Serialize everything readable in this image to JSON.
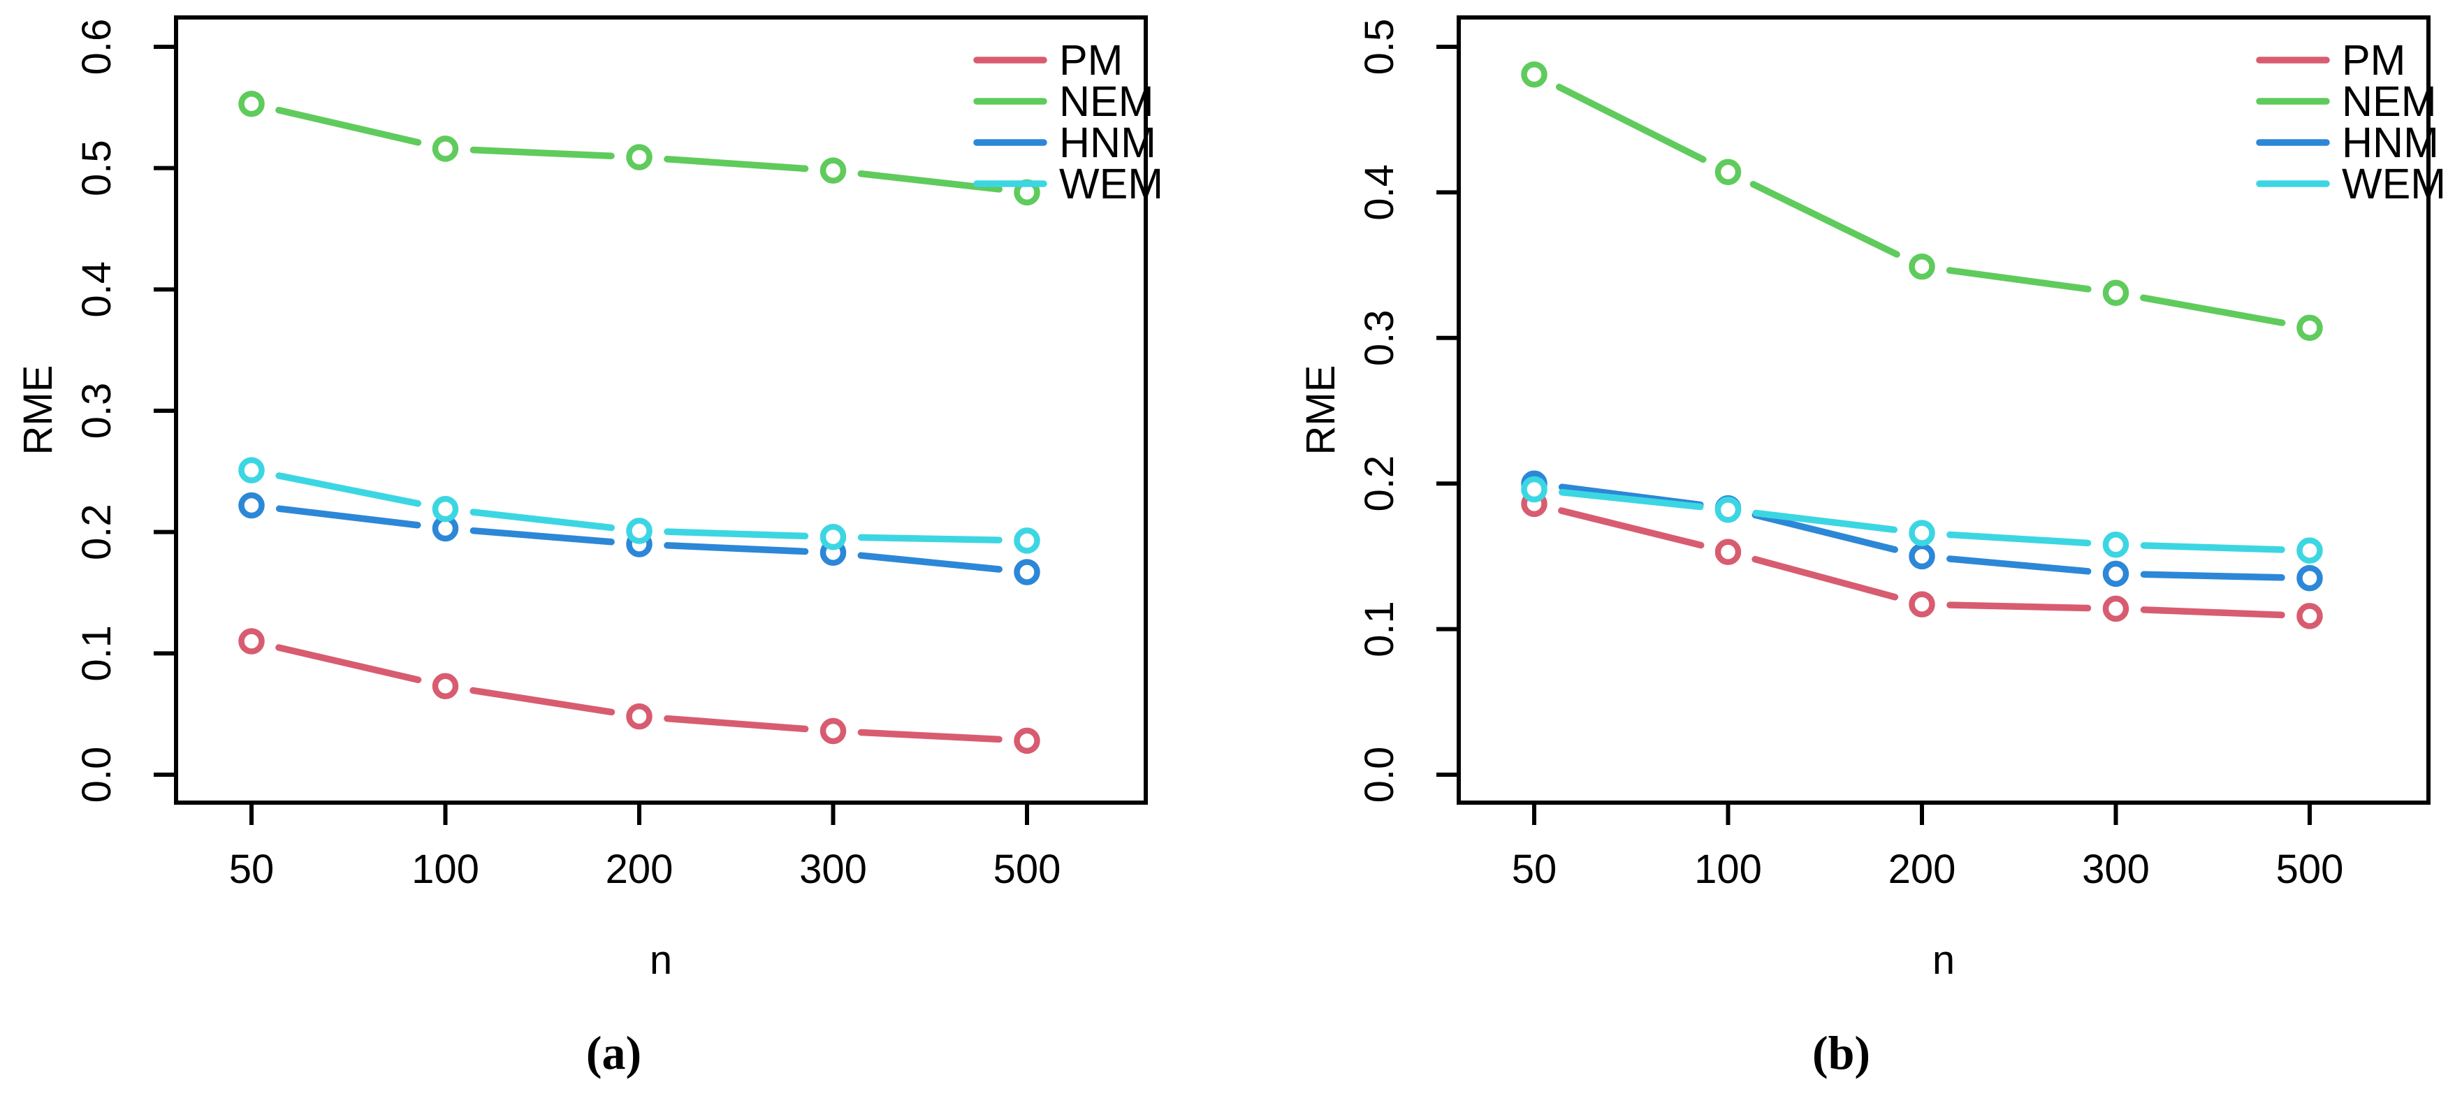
{
  "figure": {
    "background": "#ffffff",
    "caption_a": "(a)",
    "caption_b": "(b)"
  },
  "chart_data": [
    {
      "type": "line",
      "panel": "a",
      "caption": "(a)",
      "xlabel": "n",
      "ylabel": "RME",
      "x_tick_labels": [
        "50",
        "100",
        "200",
        "300",
        "500"
      ],
      "y_tick_labels": [
        "0.0",
        "0.1",
        "0.2",
        "0.3",
        "0.4",
        "0.5",
        "0.6"
      ],
      "ylim": [
        0.0,
        0.6
      ],
      "grid": false,
      "legend_position": "top-right",
      "marker": "open-circle",
      "series": [
        {
          "name": "PM",
          "color": "#d85c70",
          "values": [
            0.11,
            0.073,
            0.048,
            0.036,
            0.028
          ]
        },
        {
          "name": "NEM",
          "color": "#5fcb5c",
          "values": [
            0.553,
            0.516,
            0.509,
            0.498,
            0.48
          ]
        },
        {
          "name": "HNM",
          "color": "#2c87d7",
          "values": [
            0.222,
            0.203,
            0.19,
            0.183,
            0.167
          ]
        },
        {
          "name": "WEM",
          "color": "#3cd6e3",
          "values": [
            0.251,
            0.219,
            0.201,
            0.196,
            0.193
          ]
        }
      ]
    },
    {
      "type": "line",
      "panel": "b",
      "caption": "(b)",
      "xlabel": "n",
      "ylabel": "RME",
      "x_tick_labels": [
        "50",
        "100",
        "200",
        "300",
        "500"
      ],
      "y_tick_labels": [
        "0.0",
        "0.1",
        "0.2",
        "0.3",
        "0.4",
        "0.5"
      ],
      "ylim": [
        0.0,
        0.5
      ],
      "grid": false,
      "legend_position": "top-right",
      "marker": "open-circle",
      "series": [
        {
          "name": "PM",
          "color": "#d85c70",
          "values": [
            0.186,
            0.153,
            0.117,
            0.114,
            0.109
          ]
        },
        {
          "name": "NEM",
          "color": "#5fcb5c",
          "values": [
            0.481,
            0.414,
            0.349,
            0.331,
            0.307
          ]
        },
        {
          "name": "HNM",
          "color": "#2c87d7",
          "values": [
            0.2,
            0.183,
            0.15,
            0.138,
            0.135
          ]
        },
        {
          "name": "WEM",
          "color": "#3cd6e3",
          "values": [
            0.196,
            0.182,
            0.166,
            0.158,
            0.154
          ]
        }
      ]
    }
  ]
}
